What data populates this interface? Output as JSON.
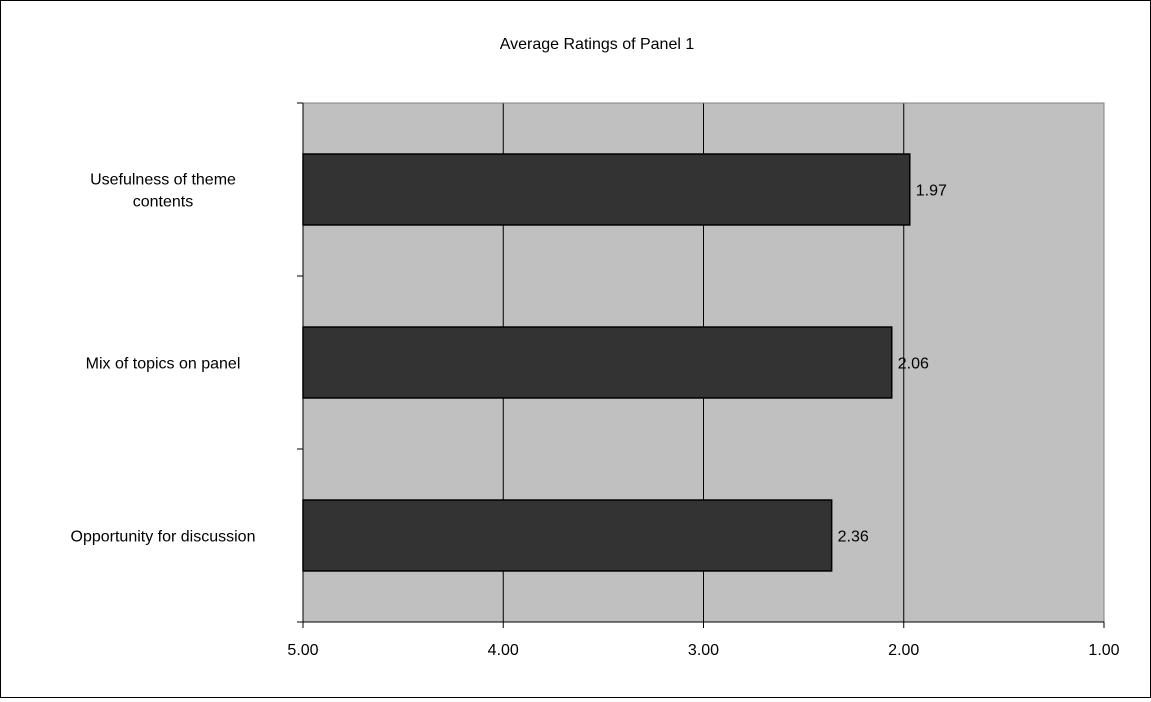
{
  "chart_data": {
    "type": "bar",
    "orientation": "horizontal",
    "title": "Average Ratings of Panel 1",
    "categories": [
      [
        "Usefulness of theme",
        "contents"
      ],
      [
        "Mix of topics on panel"
      ],
      [
        "Opportunity for discussion"
      ]
    ],
    "values": [
      1.97,
      2.06,
      2.36
    ],
    "data_labels": [
      "1.97",
      "2.06",
      "2.36"
    ],
    "xlim": [
      5.0,
      1.0
    ],
    "x_reversed": true,
    "x_ticks": [
      5.0,
      4.0,
      3.0,
      2.0,
      1.0
    ],
    "x_tick_labels": [
      "5.00",
      "4.00",
      "3.00",
      "2.00",
      "1.00"
    ],
    "xlabel": "",
    "ylabel": "",
    "grid": "vertical",
    "legend": "none",
    "colors": {
      "bar": "#333333",
      "plot_background": "#c0c0c0",
      "gridline": "#000000"
    }
  }
}
